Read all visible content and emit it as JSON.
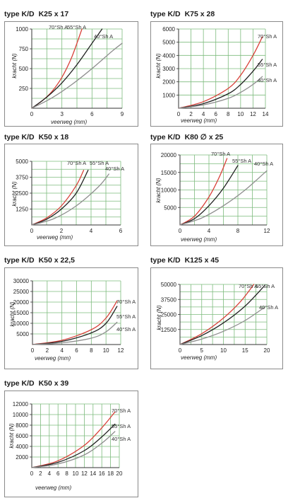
{
  "colors": {
    "grid": "#7dbb7d",
    "shore70": "#d9413a",
    "shore55": "#222222",
    "shore40": "#8e8e8e",
    "axis": "#333333"
  },
  "chart_data": [
    {
      "type": "line",
      "title_prefix": "type K/D",
      "title_model": "K25 x 17",
      "xlabel": "veerweg (mm)",
      "ylabel": "kracht (N)",
      "xlim": [
        0,
        9
      ],
      "ylim": [
        0,
        1000
      ],
      "xticks": [
        0,
        3,
        6,
        9
      ],
      "yticks": [
        250,
        500,
        750,
        1000
      ],
      "ytick_labels": [
        "250",
        "500",
        "750",
        "1000"
      ],
      "xgrid": 6,
      "ygrid": 8,
      "grid": true,
      "series": [
        {
          "name": "70°Sh A",
          "color": "#d9413a",
          "x": [
            0,
            1,
            2,
            3,
            4,
            5
          ],
          "y": [
            0,
            90,
            210,
            390,
            650,
            1000
          ]
        },
        {
          "name": "55°Sh A",
          "color": "#222222",
          "x": [
            0,
            1.5,
            3,
            4.5,
            6,
            7
          ],
          "y": [
            0,
            140,
            320,
            550,
            820,
            1000
          ]
        },
        {
          "name": "40°Sh A",
          "color": "#8e8e8e",
          "x": [
            0,
            2,
            4,
            6,
            8,
            9
          ],
          "y": [
            0,
            130,
            300,
            500,
            720,
            820
          ]
        }
      ]
    },
    {
      "type": "line",
      "title_prefix": "type K/D",
      "title_model": "K75 x 28",
      "xlabel": "veerweg (mm)",
      "ylabel": "kracht (N)",
      "xlim": [
        0,
        14
      ],
      "ylim": [
        0,
        6000
      ],
      "xticks": [
        0,
        2,
        4,
        6,
        8,
        10,
        12,
        14
      ],
      "yticks": [
        1000,
        2000,
        3000,
        4000,
        5000,
        6000
      ],
      "ytick_labels": [
        "1000",
        "2000",
        "3000",
        "4000",
        "5000",
        "6000"
      ],
      "xgrid": 7,
      "ygrid": 6,
      "grid": true,
      "series": [
        {
          "name": "70°Sh A",
          "color": "#d9413a",
          "x": [
            0,
            4,
            8,
            10,
            12,
            13.5
          ],
          "y": [
            0,
            500,
            1500,
            2500,
            4000,
            5400
          ]
        },
        {
          "name": "55°Sh A",
          "color": "#222222",
          "x": [
            0,
            4,
            8,
            10,
            12,
            13.5
          ],
          "y": [
            0,
            350,
            1100,
            1800,
            2800,
            3700
          ]
        },
        {
          "name": "40°Sh A",
          "color": "#8e8e8e",
          "x": [
            0,
            4,
            8,
            10,
            12,
            13.5
          ],
          "y": [
            0,
            250,
            750,
            1200,
            1800,
            2400
          ]
        }
      ]
    },
    {
      "type": "line",
      "title_prefix": "type K/D",
      "title_model": "K50 x 18",
      "xlabel": "veerweg (mm)",
      "ylabel": "kracht (N)",
      "xlim": [
        0,
        6
      ],
      "ylim": [
        0,
        5000
      ],
      "xticks": [
        0,
        2,
        4,
        6
      ],
      "yticks": [
        1250,
        2500,
        3750,
        5000
      ],
      "ytick_labels": [
        "1250",
        "2500",
        "3750",
        "5000"
      ],
      "xgrid": 6,
      "ygrid": 8,
      "grid": true,
      "series": [
        {
          "name": "70°Sh A",
          "color": "#d9413a",
          "x": [
            0,
            1,
            2,
            3,
            3.5
          ],
          "y": [
            0,
            550,
            1500,
            3100,
            4300
          ]
        },
        {
          "name": "55°Sh A",
          "color": "#222222",
          "x": [
            0,
            1,
            2,
            3,
            3.8
          ],
          "y": [
            0,
            450,
            1250,
            2500,
            4300
          ]
        },
        {
          "name": "40°Sh A",
          "color": "#8e8e8e",
          "x": [
            0,
            1.5,
            3,
            4.5,
            5.2
          ],
          "y": [
            0,
            500,
            1500,
            3000,
            4000
          ]
        }
      ]
    },
    {
      "type": "line",
      "title_prefix": "type K/D",
      "title_model": "K80 ∅ x 25",
      "xlabel": "veerweg (mm)",
      "ylabel": "kracht (N)",
      "xlim": [
        0,
        12
      ],
      "ylim": [
        0,
        20000
      ],
      "xticks": [
        0,
        4,
        8,
        12
      ],
      "yticks": [
        5000,
        10000,
        15000,
        20000
      ],
      "ytick_labels": [
        "5000",
        "10000",
        "15000",
        "20000"
      ],
      "xgrid": 6,
      "ygrid": 8,
      "grid": true,
      "series": [
        {
          "name": "70°Sh A",
          "color": "#d9413a",
          "x": [
            0,
            2,
            4,
            5.5,
            6.5
          ],
          "y": [
            0,
            2500,
            8000,
            14000,
            19000
          ]
        },
        {
          "name": "55°Sh A",
          "color": "#222222",
          "x": [
            0,
            2,
            4,
            6,
            8
          ],
          "y": [
            0,
            1800,
            5500,
            10500,
            17000
          ]
        },
        {
          "name": "40°Sh A",
          "color": "#8e8e8e",
          "x": [
            0,
            3,
            6,
            9,
            12
          ],
          "y": [
            0,
            2000,
            5500,
            10000,
            15500
          ]
        }
      ]
    },
    {
      "type": "line",
      "title_prefix": "type K/D",
      "title_model": "K50 x 22,5",
      "xlabel": "veerweg (mm)",
      "ylabel": "kracht (N)",
      "xlim": [
        0,
        12
      ],
      "ylim": [
        0,
        30000
      ],
      "xticks": [
        0,
        2,
        4,
        6,
        8,
        10,
        12
      ],
      "yticks": [
        5000,
        10000,
        15000,
        20000,
        25000,
        30000
      ],
      "ytick_labels": [
        "5000",
        "10000",
        "15000",
        "20000",
        "25000",
        "30000"
      ],
      "xgrid": 6,
      "ygrid": 6,
      "grid": true,
      "series": [
        {
          "name": "70°Sh A",
          "color": "#d9413a",
          "x": [
            0,
            4,
            8,
            10,
            11.5
          ],
          "y": [
            0,
            2000,
            7000,
            12500,
            20500
          ]
        },
        {
          "name": "55°Sh A",
          "color": "#222222",
          "x": [
            0,
            4,
            8,
            10,
            11.5
          ],
          "y": [
            0,
            1500,
            5500,
            10000,
            18000
          ]
        },
        {
          "name": "40°Sh A",
          "color": "#8e8e8e",
          "x": [
            0,
            4,
            8,
            10,
            11.5
          ],
          "y": [
            0,
            800,
            3000,
            6000,
            10500
          ]
        }
      ]
    },
    {
      "type": "line",
      "title_prefix": "type K/D",
      "title_model": "K125 x 45",
      "xlabel": "veerweg (mm)",
      "ylabel": "kracht (N)",
      "xlim": [
        0,
        20
      ],
      "ylim": [
        0,
        50000
      ],
      "xticks": [
        0,
        5,
        10,
        15,
        20
      ],
      "yticks": [
        12500,
        25000,
        37500,
        50000
      ],
      "ytick_labels": [
        "12500",
        "25000",
        "37500",
        "50000"
      ],
      "xgrid": 8,
      "ygrid": 8,
      "grid": true,
      "series": [
        {
          "name": "70°Sh A",
          "color": "#d9413a",
          "x": [
            0,
            5,
            10,
            14,
            17
          ],
          "y": [
            0,
            9000,
            22000,
            36000,
            50000
          ]
        },
        {
          "name": "55°Sh A",
          "color": "#222222",
          "x": [
            0,
            5,
            10,
            15,
            19.5
          ],
          "y": [
            0,
            7500,
            18000,
            32000,
            49000
          ]
        },
        {
          "name": "40°Sh A",
          "color": "#8e8e8e",
          "x": [
            0,
            5,
            10,
            15,
            19.5
          ],
          "y": [
            0,
            4500,
            11000,
            20000,
            31000
          ]
        }
      ]
    },
    {
      "type": "line",
      "title_prefix": "type K/D",
      "title_model": "K50 x 39",
      "xlabel": "veerweg (mm)",
      "ylabel": "kracht (N)",
      "xlim": [
        0,
        20
      ],
      "ylim": [
        0,
        12000
      ],
      "xticks": [
        0,
        2,
        4,
        6,
        8,
        10,
        12,
        14,
        16,
        18,
        20
      ],
      "yticks": [
        2000,
        4000,
        6000,
        8000,
        10000,
        12000
      ],
      "ytick_labels": [
        "2000",
        "4000",
        "6000",
        "8000",
        "10000",
        "12000"
      ],
      "xgrid": 10,
      "ygrid": 6,
      "grid": true,
      "series": [
        {
          "name": "70°Sh A",
          "color": "#d9413a",
          "x": [
            0,
            6,
            12,
            16,
            19
          ],
          "y": [
            0,
            1300,
            4200,
            7500,
            10500
          ]
        },
        {
          "name": "55°Sh A",
          "color": "#222222",
          "x": [
            0,
            6,
            12,
            16,
            19
          ],
          "y": [
            0,
            1000,
            3200,
            5800,
            8200
          ]
        },
        {
          "name": "40°Sh A",
          "color": "#8e8e8e",
          "x": [
            0,
            6,
            12,
            16,
            19
          ],
          "y": [
            0,
            700,
            2400,
            4600,
            6800
          ]
        }
      ]
    }
  ]
}
